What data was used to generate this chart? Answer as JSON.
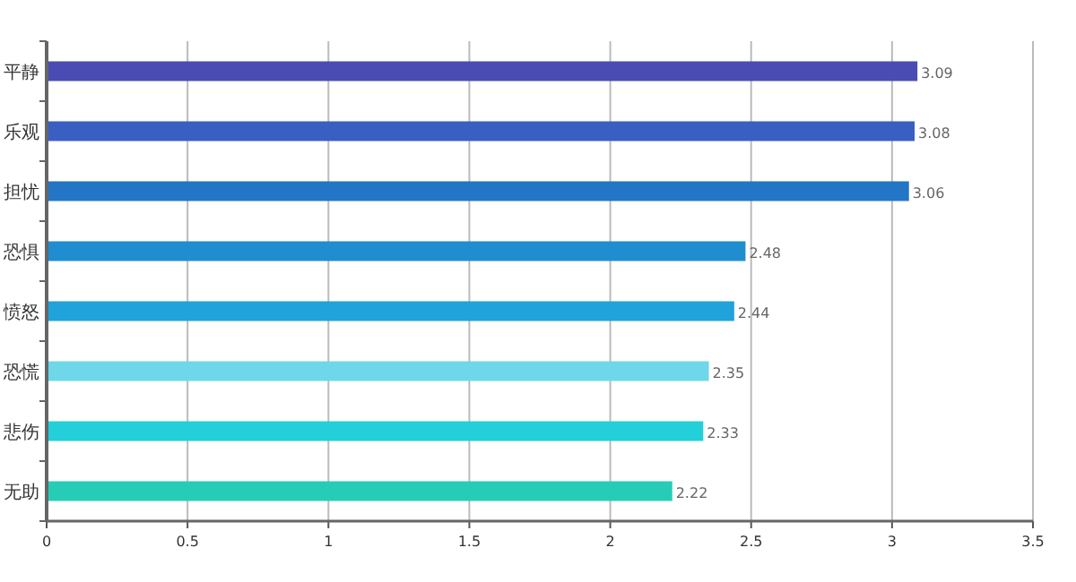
{
  "chart_data": {
    "type": "bar",
    "orientation": "horizontal",
    "categories": [
      "平静",
      "乐观",
      "担忧",
      "恐惧",
      "愤怒",
      "恐慌",
      "悲伤",
      "无助"
    ],
    "values": [
      3.09,
      3.08,
      3.06,
      2.48,
      2.44,
      2.35,
      2.33,
      2.22
    ],
    "colors": [
      "#4a4cb3",
      "#3a5fc3",
      "#2375c6",
      "#1f8dcf",
      "#20a2da",
      "#6fd7ea",
      "#23cfd9",
      "#27ccb7"
    ],
    "xlim": [
      0,
      3.5
    ],
    "xticks": [
      0,
      0.5,
      1,
      1.5,
      2,
      2.5,
      3,
      3.5
    ],
    "grid": "x",
    "data_labels": true
  }
}
